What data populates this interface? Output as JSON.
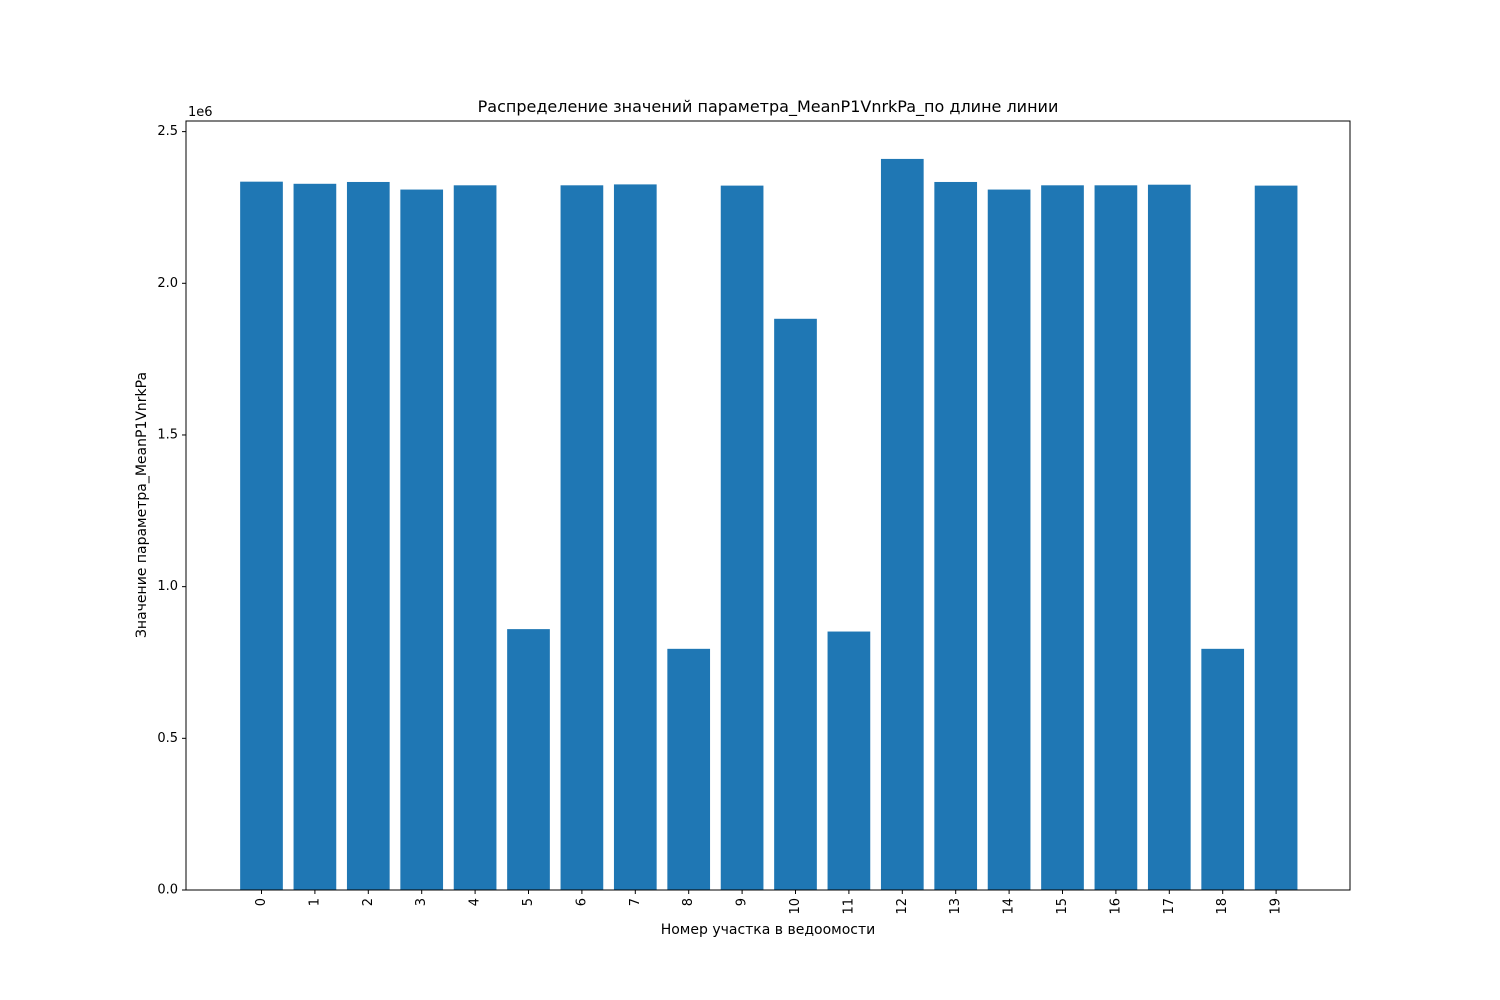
{
  "chart_data": {
    "type": "bar",
    "title": "Распределение значений параметра_MeanP1VnrkPa_по длине линии",
    "xlabel": "Номер участка в ведоомости",
    "ylabel": "Значение параметра_MeanP1VnrkPa",
    "y_offset_label": "1e6",
    "categories": [
      "0",
      "1",
      "2",
      "3",
      "4",
      "5",
      "6",
      "7",
      "8",
      "9",
      "10",
      "11",
      "12",
      "13",
      "14",
      "15",
      "16",
      "17",
      "18",
      "19"
    ],
    "values": [
      2335000,
      2328000,
      2334000,
      2309000,
      2323000,
      860000,
      2323000,
      2326000,
      795000,
      2322000,
      1883000,
      852000,
      2410000,
      2334000,
      2309000,
      2323000,
      2323000,
      2325000,
      795000,
      2322000
    ],
    "ylim": [
      0,
      2535000
    ],
    "yticks": [
      0,
      500000,
      1000000,
      1500000,
      2000000,
      2500000
    ],
    "ytick_labels": [
      "0.0",
      "0.5",
      "1.0",
      "1.5",
      "2.0",
      "2.5"
    ],
    "bar_color": "#1f77b4",
    "grid": false,
    "legend": "none"
  }
}
